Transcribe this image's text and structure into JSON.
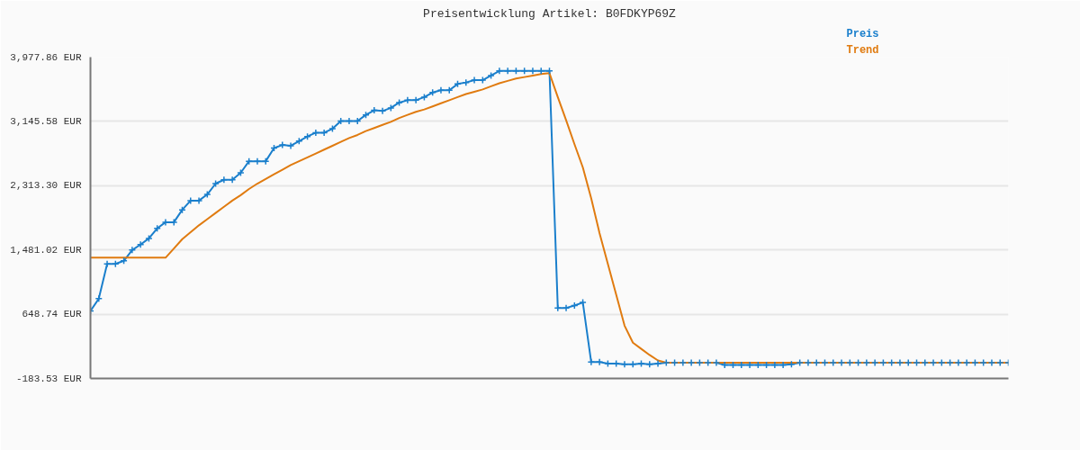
{
  "chart_data": {
    "type": "line",
    "title": "Preisentwicklung Artikel: B0FDKYP69Z",
    "categories": [
      null,
      null,
      null,
      null,
      null,
      null,
      null,
      null,
      null,
      null,
      null,
      null,
      null,
      null,
      null,
      null,
      null,
      null,
      null,
      null,
      null,
      null,
      null,
      null,
      null,
      null,
      null,
      null,
      null,
      null,
      null,
      null,
      null,
      null,
      null,
      null,
      null,
      null,
      null,
      null,
      null,
      null,
      null,
      null,
      null,
      null,
      null,
      null,
      null,
      null,
      null,
      null,
      null,
      null,
      null,
      null,
      null,
      null,
      null,
      null,
      null,
      null,
      null,
      null,
      null,
      null,
      null,
      null,
      null,
      null,
      null,
      null,
      null,
      null,
      null,
      null,
      null,
      null,
      null,
      null,
      null,
      null,
      null,
      null,
      null,
      null,
      null,
      null,
      null,
      null,
      null,
      null,
      null,
      null,
      null,
      null,
      null,
      null,
      null,
      null,
      null,
      null,
      null,
      null,
      null,
      null,
      null,
      null,
      null,
      null,
      null
    ],
    "series": [
      {
        "name": "Preis",
        "color": "#1a7fcc",
        "marker": "cross",
        "values": [
          690,
          850,
          1300,
          1300,
          1340,
          1480,
          1550,
          1630,
          1760,
          1840,
          1840,
          2000,
          2120,
          2120,
          2200,
          2340,
          2390,
          2390,
          2480,
          2630,
          2630,
          2630,
          2800,
          2840,
          2830,
          2890,
          2950,
          3000,
          3000,
          3050,
          3150,
          3150,
          3150,
          3230,
          3290,
          3280,
          3320,
          3390,
          3420,
          3420,
          3460,
          3520,
          3550,
          3550,
          3630,
          3650,
          3680,
          3680,
          3740,
          3800,
          3800,
          3800,
          3800,
          3800,
          3800,
          3800,
          730,
          730,
          760,
          800,
          30,
          30,
          10,
          10,
          0,
          0,
          10,
          0,
          10,
          20,
          20,
          20,
          20,
          20,
          20,
          20,
          -10,
          -10,
          -10,
          -10,
          -10,
          -10,
          -10,
          -10,
          0,
          20,
          20,
          20,
          20,
          20,
          20,
          20,
          20,
          20,
          20,
          20,
          20,
          20,
          20,
          20,
          20,
          20,
          20,
          20,
          20,
          20,
          20,
          20,
          20,
          20,
          20
        ]
      },
      {
        "name": "Trend",
        "color": "#e07b10",
        "values": [
          1380,
          1380,
          1380,
          1380,
          1380,
          1380,
          1380,
          1380,
          1380,
          1380,
          1500,
          1620,
          1710,
          1800,
          1880,
          1960,
          2040,
          2120,
          2190,
          2270,
          2340,
          2400,
          2460,
          2520,
          2580,
          2630,
          2680,
          2730,
          2780,
          2830,
          2880,
          2930,
          2970,
          3020,
          3060,
          3100,
          3140,
          3190,
          3230,
          3270,
          3300,
          3340,
          3380,
          3420,
          3460,
          3500,
          3530,
          3560,
          3600,
          3640,
          3670,
          3700,
          3720,
          3740,
          3760,
          3770,
          3460,
          3160,
          2850,
          2550,
          2150,
          1700,
          1300,
          900,
          500,
          280,
          200,
          120,
          50,
          20,
          20,
          20,
          20,
          20,
          20,
          20,
          20,
          20,
          20,
          20,
          20,
          20,
          20,
          20,
          20,
          20,
          20,
          20,
          20,
          20,
          20,
          20,
          20,
          20,
          20,
          20,
          20,
          20,
          20,
          20,
          20,
          20,
          20,
          20,
          20,
          20,
          20,
          20,
          20,
          20,
          20
        ]
      }
    ],
    "ylim": [
      -183.53,
      3977.86
    ],
    "yticks": [
      {
        "value": -183.53,
        "label": "-183.53 EUR"
      },
      {
        "value": 648.74,
        "label": "648.74 EUR"
      },
      {
        "value": 1481.02,
        "label": "1,481.02 EUR"
      },
      {
        "value": 2313.3,
        "label": "2,313.30 EUR"
      },
      {
        "value": 3145.58,
        "label": "3,145.58 EUR"
      },
      {
        "value": 3977.86,
        "label": "3,977.86 EUR"
      }
    ],
    "grid": "y",
    "tick_labels": "y"
  }
}
